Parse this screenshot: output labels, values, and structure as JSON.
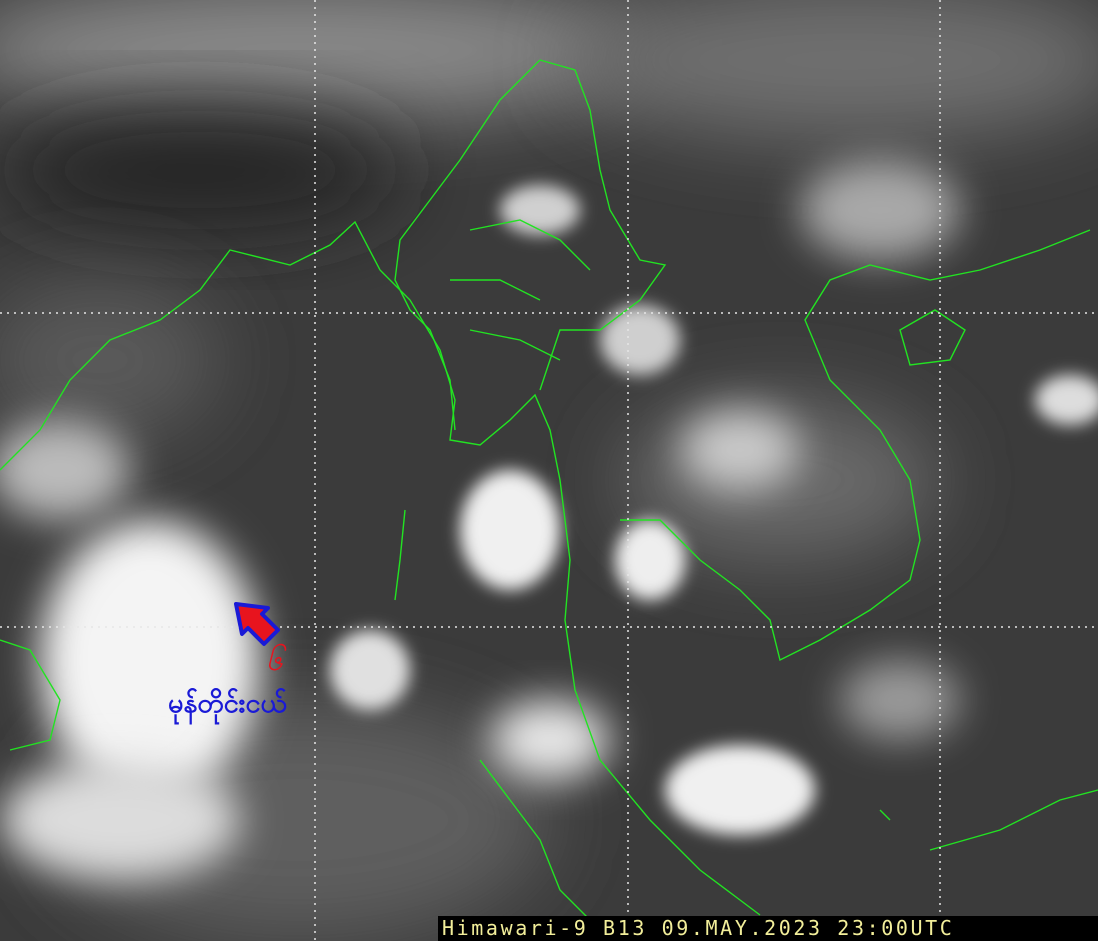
{
  "image": {
    "type": "infrared satellite image",
    "caption": "Himawari-9 B13 09.MAY.2023 23:00UTC",
    "coastline_color": "#22e322",
    "grid_style": "white dotted lat/lon lines"
  },
  "annotation": {
    "arrow": {
      "fill": "#e8141e",
      "outline": "#1a1ad6",
      "direction": "north-west"
    },
    "number": "၆",
    "label": "မုန်တိုင်းငယ်",
    "number_color": "#e8141e",
    "label_color": "#1a1ad6"
  }
}
